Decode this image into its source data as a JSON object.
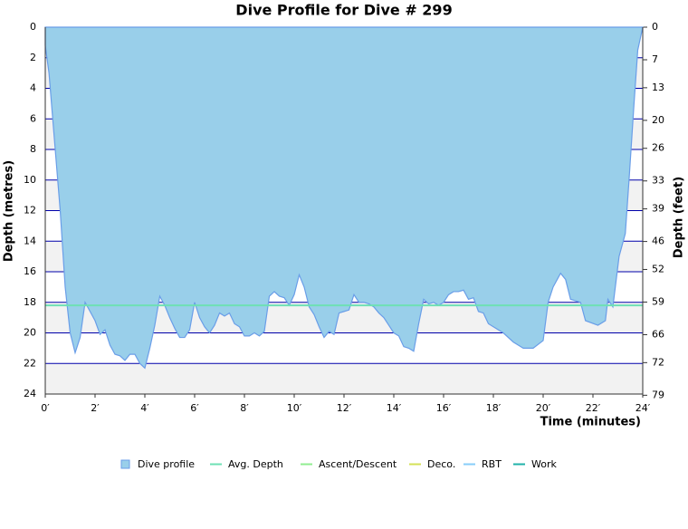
{
  "chart_data": {
    "type": "area",
    "title": "Dive Profile for Dive # 299",
    "x_label": "Time (minutes)",
    "y_label": "Depth (metres)",
    "y2_label": "Depth (feet)",
    "xlim": [
      0,
      24
    ],
    "ylim": [
      0,
      24
    ],
    "y_inverted": true,
    "y2lim": [
      0,
      78.74
    ],
    "xticks": [
      {
        "value": 0,
        "label": "0′"
      },
      {
        "value": 2,
        "label": "2′"
      },
      {
        "value": 4,
        "label": "4′"
      },
      {
        "value": 6,
        "label": "6′"
      },
      {
        "value": 8,
        "label": "8′"
      },
      {
        "value": 10,
        "label": "10′"
      },
      {
        "value": 12,
        "label": "12′"
      },
      {
        "value": 14,
        "label": "14′"
      },
      {
        "value": 16,
        "label": "16′"
      },
      {
        "value": 18,
        "label": "18′"
      },
      {
        "value": 20,
        "label": "20′"
      },
      {
        "value": 22,
        "label": "22′"
      },
      {
        "value": 24,
        "label": "24′"
      }
    ],
    "yticks": [
      0,
      2,
      4,
      6,
      8,
      10,
      12,
      14,
      16,
      18,
      20,
      22,
      24
    ],
    "y2ticks": [
      0,
      7,
      13,
      20,
      26,
      33,
      39,
      46,
      52,
      59,
      66,
      72,
      79
    ],
    "series": [
      {
        "name": "Dive profile",
        "color": "#99cfea",
        "x": [
          0,
          0.15,
          0.4,
          0.6,
          0.8,
          1.0,
          1.2,
          1.4,
          1.6,
          1.8,
          2.0,
          2.2,
          2.4,
          2.6,
          2.8,
          3.0,
          3.2,
          3.4,
          3.6,
          3.8,
          4.0,
          4.2,
          4.4,
          4.6,
          4.8,
          5.0,
          5.2,
          5.4,
          5.6,
          5.8,
          6.0,
          6.2,
          6.4,
          6.6,
          6.8,
          7.0,
          7.2,
          7.4,
          7.6,
          7.8,
          8.0,
          8.2,
          8.4,
          8.6,
          8.8,
          9.0,
          9.2,
          9.4,
          9.6,
          9.8,
          10.0,
          10.2,
          10.4,
          10.6,
          10.8,
          11.0,
          11.2,
          11.4,
          11.6,
          11.8,
          12.0,
          12.2,
          12.4,
          12.6,
          12.8,
          13.0,
          13.2,
          13.4,
          13.6,
          13.8,
          14.0,
          14.2,
          14.4,
          14.6,
          14.8,
          15.0,
          15.2,
          15.4,
          15.6,
          15.8,
          16.0,
          16.2,
          16.4,
          16.6,
          16.8,
          17.0,
          17.2,
          17.4,
          17.6,
          17.8,
          18.0,
          18.4,
          18.8,
          19.2,
          19.6,
          20.0,
          20.2,
          20.4,
          20.7,
          20.9,
          21.1,
          21.5,
          21.7,
          22.2,
          22.5,
          22.6,
          22.8,
          23.05,
          23.3,
          23.45,
          23.65,
          23.8,
          24
        ],
        "values": [
          1.2,
          3,
          8,
          12,
          17,
          20,
          21.3,
          20.3,
          18,
          18.6,
          19.2,
          20.1,
          19.8,
          20.8,
          21.4,
          21.5,
          21.8,
          21.4,
          21.4,
          22.0,
          22.3,
          21.0,
          19.5,
          17.6,
          18.2,
          19.0,
          19.7,
          20.3,
          20.3,
          19.8,
          18.0,
          19.0,
          19.6,
          20.0,
          19.5,
          18.7,
          18.9,
          18.7,
          19.4,
          19.6,
          20.2,
          20.2,
          20.0,
          20.2,
          19.9,
          17.6,
          17.3,
          17.6,
          17.7,
          18.2,
          17.5,
          16.2,
          17.0,
          18.3,
          18.8,
          19.6,
          20.3,
          19.9,
          20.1,
          18.7,
          18.6,
          18.5,
          17.5,
          18.0,
          18.0,
          18.1,
          18.3,
          18.7,
          19.0,
          19.5,
          20.0,
          20.2,
          20.9,
          21.0,
          21.2,
          19.4,
          17.8,
          18.1,
          18.0,
          18.2,
          18.0,
          17.5,
          17.3,
          17.3,
          17.2,
          17.8,
          17.7,
          18.6,
          18.7,
          19.4,
          19.6,
          20.0,
          20.6,
          21.0,
          21.0,
          20.5,
          18.0,
          17.0,
          16.1,
          16.5,
          17.8,
          18.0,
          19.2,
          19.5,
          19.2,
          17.8,
          18.3,
          15,
          13.5,
          10,
          5,
          1.5,
          0
        ]
      }
    ],
    "avg_depth": 18.2,
    "legend": [
      {
        "name": "Dive profile",
        "color": "#99cfea"
      },
      {
        "name": "Avg. Depth",
        "color": "#6ee0b4"
      },
      {
        "name": "Ascent/Descent",
        "color": "#90ee90"
      },
      {
        "name": "Deco.",
        "color": "#d4e157"
      },
      {
        "name": "RBT",
        "color": "#87cefa"
      },
      {
        "name": "Work",
        "color": "#20b2aa"
      }
    ]
  }
}
